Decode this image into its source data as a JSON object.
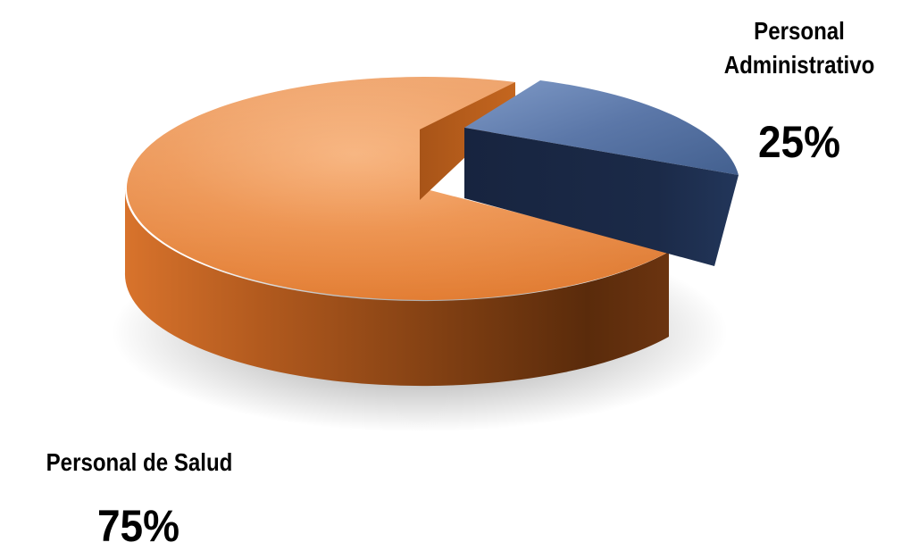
{
  "chart_data": {
    "type": "pie",
    "style": "3d-exploded",
    "slices": [
      {
        "label": "Personal de Salud",
        "value": 75,
        "display": "75%",
        "color": "#e8873f"
      },
      {
        "label": "Personal Administrativo",
        "value": 25,
        "display": "25%",
        "color": "#3d5687"
      }
    ],
    "labels": {
      "admin_line1": "Personal",
      "admin_line2": "Administrativo",
      "admin_pct": "25%",
      "salud_name": "Personal de Salud",
      "salud_pct": "75%"
    }
  }
}
